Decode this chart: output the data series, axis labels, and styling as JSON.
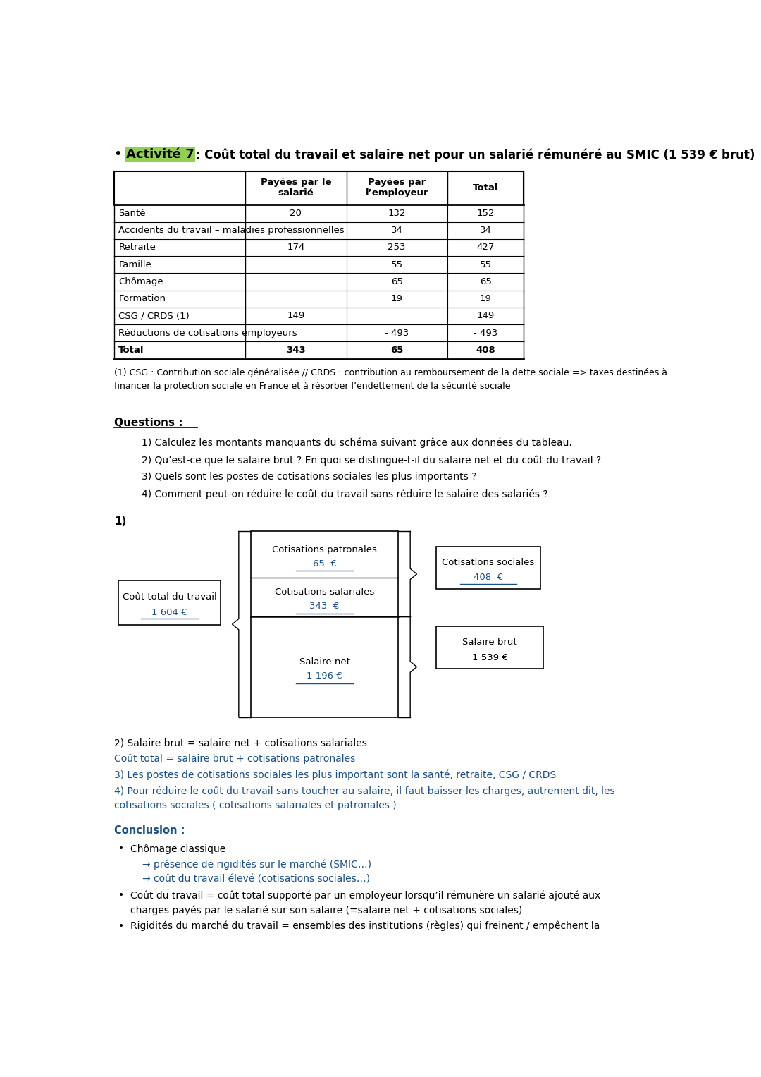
{
  "title_bullet": "• ",
  "title_activite": "Activité 7",
  "title_rest": " : Coût total du travail et salaire net pour un salarié rémunéré au SMIC (1 539 € brut)",
  "table_rows": [
    [
      "Santé",
      "20",
      "132",
      "152"
    ],
    [
      "Accidents du travail – maladies professionnelles",
      "",
      "34",
      "34"
    ],
    [
      "Retraite",
      "174",
      "253",
      "427"
    ],
    [
      "Famille",
      "",
      "55",
      "55"
    ],
    [
      "Chômage",
      "",
      "65",
      "65"
    ],
    [
      "Formation",
      "",
      "19",
      "19"
    ],
    [
      "CSG / CRDS (1)",
      "149",
      "",
      "149"
    ],
    [
      "Réductions de cotisations employeurs",
      "",
      "- 493",
      "- 493"
    ],
    [
      "Total",
      "343",
      "65",
      "408"
    ]
  ],
  "header_col1": "Payées par le\nsalarié",
  "header_col2": "Payées par\nl’employeur",
  "header_col3": "Total",
  "footnote": "(1) CSG : Contribution sociale généralisée // CRDS : contribution au remboursement de la dette sociale => taxes destinées à\nfinancer la protection sociale en France et à résorber l’endettement de la sécurité sociale",
  "questions_title": "Questions :",
  "questions": [
    "1) Calculez les montants manquants du schéma suivant grâce aux données du tableau.",
    "2) Qu’est-ce que le salaire brut ? En quoi se distingue-t-il du salaire net et du coût du travail ?",
    "3) Quels sont les postes de cotisations sociales les plus importants ?",
    "4) Comment peut-on réduire le coût du travail sans réduire le salaire des salariés ?"
  ],
  "schema_label": "1)",
  "box_cout_line1": "Coût total du travail",
  "box_cout_line2": "1 604 €",
  "box_cot_pat_line1": "Cotisations patronales",
  "box_cot_pat_line2": "65  €",
  "box_cot_sal_line1": "Cotisations salariales",
  "box_cot_sal_line2": "343  €",
  "box_sal_net_line1": "Salaire net",
  "box_sal_net_line2": "1 196 €",
  "box_cot_soc_line1": "Cotisations sociales",
  "box_cot_soc_line2": "408  €",
  "box_sal_brut_line1": "Salaire brut",
  "box_sal_brut_line2": "1 539 €",
  "answer2_line1": "2) Salaire brut = salaire net + cotisations salariales",
  "answer2_line2": "Coût total = salaire brut + cotisations patronales",
  "answer3": "3) Les postes de cotisations sociales les plus important sont la santé, retraite, CSG / CRDS",
  "answer4_line1": "4) Pour réduire le coût du travail sans toucher au salaire, il faut baisser les charges, autrement dit, les",
  "answer4_line2": "cotisations sociales ( cotisations salariales et patronales )",
  "conclusion_title": "Conclusion :",
  "concl_bullet1": "Chômage classique",
  "concl_sub1a": "→ présence de rigidités sur le marché (SMIC…)",
  "concl_sub1b": "→ coût du travail élevé (cotisations sociales…)",
  "concl_bullet2_l1": "Coût du travail = coût total supporté par un employeur lorsqu’il rémunère un salarié ajouté aux",
  "concl_bullet2_l2": "charges payés par le salarié sur son salaire (=salaire net + cotisations sociales)",
  "concl_bullet3": "Rigidités du marché du travail = ensembles des institutions (règles) qui freinent / empêchent la",
  "bg_color": "#ffffff",
  "text_color": "#000000",
  "blue_color": "#1a4f8a",
  "highlight_color": "#92d050"
}
